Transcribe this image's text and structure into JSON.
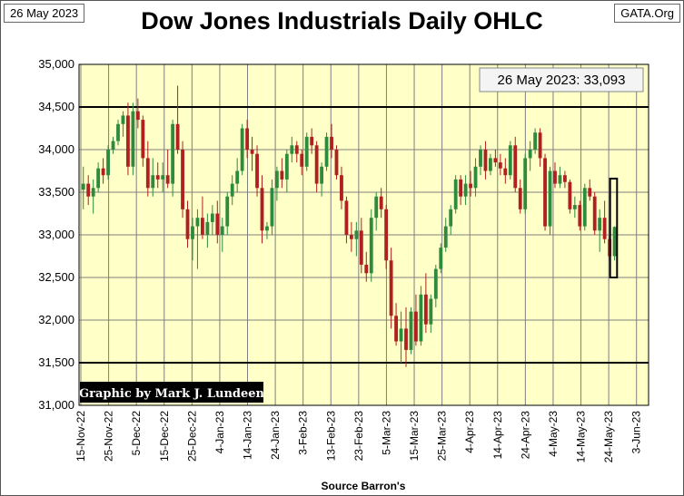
{
  "header": {
    "date_label": "26 May 2023",
    "site_label": "GATA.Org",
    "title": "Dow Jones Industrials Daily OHLC"
  },
  "chart_data": {
    "type": "ohlc",
    "title": "Dow Jones Industrials Daily OHLC",
    "xlabel": "Source Barron's",
    "ylabel": "",
    "ylim": [
      31000,
      35000
    ],
    "y_ticks": [
      31000,
      31500,
      32000,
      32500,
      33000,
      33500,
      34000,
      34500,
      35000
    ],
    "y_tick_labels": [
      "31,000",
      "31,500",
      "32,000",
      "32,500",
      "33,000",
      "33,500",
      "34,000",
      "34,500",
      "35,000"
    ],
    "x_tick_labels": [
      "15-Nov-22",
      "25-Nov-22",
      "5-Dec-22",
      "15-Dec-22",
      "25-Dec-22",
      "4-Jan-23",
      "14-Jan-23",
      "24-Jan-23",
      "3-Feb-23",
      "13-Feb-23",
      "23-Feb-23",
      "5-Mar-23",
      "15-Mar-23",
      "25-Mar-23",
      "4-Apr-23",
      "14-Apr-23",
      "24-Apr-23",
      "4-May-23",
      "14-May-23",
      "24-May-23",
      "3-Jun-23"
    ],
    "reference_lines": [
      34500,
      31500
    ],
    "annotation": "26 May 2023:  33,093",
    "credit": "Graphic by Mark J. Lundeen",
    "highlight_box": {
      "x_start": 190.5,
      "x_end": 193.0,
      "y_low": 32500,
      "y_high": 33660
    },
    "colors": {
      "plot_bg": "#ffffc8",
      "up": "#2e8b3e",
      "down": "#b02020",
      "grid": "#7f7f7f",
      "ref_line": "#000000"
    },
    "series": [
      {
        "name": "daily",
        "ohlc": [
          [
            33530,
            33800,
            33300,
            33600
          ],
          [
            33600,
            33700,
            33350,
            33450
          ],
          [
            33450,
            33650,
            33250,
            33550
          ],
          [
            33550,
            33850,
            33500,
            33780
          ],
          [
            33780,
            33900,
            33600,
            33700
          ],
          [
            33700,
            34050,
            33650,
            34000
          ],
          [
            34000,
            34150,
            33950,
            34100
          ],
          [
            34100,
            34350,
            34050,
            34300
          ],
          [
            34300,
            34450,
            34150,
            34400
          ],
          [
            34400,
            34550,
            33700,
            33800
          ],
          [
            33800,
            34550,
            33700,
            34450
          ],
          [
            34450,
            34600,
            34250,
            34350
          ],
          [
            34350,
            34400,
            33800,
            33900
          ],
          [
            33900,
            34100,
            33450,
            33550
          ],
          [
            33550,
            33900,
            33450,
            33700
          ],
          [
            33700,
            33850,
            33550,
            33650
          ],
          [
            33650,
            33850,
            33500,
            33700
          ],
          [
            33700,
            34000,
            33550,
            33600
          ],
          [
            33600,
            34350,
            33450,
            34300
          ],
          [
            34300,
            34750,
            33950,
            34000
          ],
          [
            34000,
            34100,
            33200,
            33300
          ],
          [
            33300,
            33400,
            32850,
            32950
          ],
          [
            32950,
            33200,
            32700,
            33100
          ],
          [
            33100,
            33300,
            32600,
            33200
          ],
          [
            33200,
            33450,
            32950,
            33000
          ],
          [
            33000,
            33250,
            32850,
            33150
          ],
          [
            33150,
            33350,
            33000,
            33250
          ],
          [
            33250,
            33400,
            32900,
            33000
          ],
          [
            33000,
            33200,
            32800,
            33100
          ],
          [
            33100,
            33500,
            33000,
            33450
          ],
          [
            33450,
            33700,
            33350,
            33600
          ],
          [
            33600,
            33900,
            33500,
            33750
          ],
          [
            33750,
            34300,
            33700,
            34250
          ],
          [
            34250,
            34350,
            33900,
            34000
          ],
          [
            34000,
            34150,
            33750,
            33950
          ],
          [
            33950,
            34050,
            33450,
            33550
          ],
          [
            33550,
            33700,
            32900,
            33050
          ],
          [
            33050,
            33150,
            32950,
            33100
          ],
          [
            33100,
            33650,
            33000,
            33550
          ],
          [
            33550,
            33800,
            33400,
            33750
          ],
          [
            33750,
            33900,
            33550,
            33650
          ],
          [
            33650,
            34000,
            33500,
            33950
          ],
          [
            33950,
            34150,
            33850,
            34050
          ],
          [
            34050,
            34100,
            33850,
            33950
          ],
          [
            33950,
            34000,
            33700,
            33800
          ],
          [
            33800,
            34200,
            33750,
            34150
          ],
          [
            34150,
            34250,
            33950,
            34050
          ],
          [
            34050,
            34100,
            33500,
            33600
          ],
          [
            33600,
            33850,
            33450,
            33800
          ],
          [
            33800,
            34200,
            33750,
            34150
          ],
          [
            34150,
            34300,
            33900,
            34000
          ],
          [
            34000,
            34050,
            33650,
            33700
          ],
          [
            33700,
            33800,
            33300,
            33400
          ],
          [
            33400,
            33450,
            32900,
            33000
          ],
          [
            33000,
            33150,
            32800,
            32950
          ],
          [
            32950,
            33150,
            32750,
            33050
          ],
          [
            33050,
            33200,
            32550,
            32650
          ],
          [
            32650,
            32800,
            32450,
            32550
          ],
          [
            32550,
            33300,
            32450,
            33200
          ],
          [
            33200,
            33500,
            33050,
            33450
          ],
          [
            33450,
            33550,
            33200,
            33300
          ],
          [
            33300,
            33350,
            32600,
            32700
          ],
          [
            32700,
            32850,
            31900,
            32050
          ],
          [
            32050,
            32200,
            31700,
            31750
          ],
          [
            31750,
            32100,
            31500,
            31900
          ],
          [
            31900,
            32150,
            31450,
            31650
          ],
          [
            31650,
            32150,
            31600,
            32100
          ],
          [
            32100,
            32300,
            31700,
            31750
          ],
          [
            31750,
            32400,
            31700,
            32300
          ],
          [
            32300,
            32550,
            31850,
            31950
          ],
          [
            31950,
            32300,
            31850,
            32250
          ],
          [
            32250,
            32650,
            32150,
            32600
          ],
          [
            32600,
            32900,
            32550,
            32850
          ],
          [
            32850,
            33200,
            32800,
            33100
          ],
          [
            33100,
            33350,
            33000,
            33300
          ],
          [
            33300,
            33700,
            33250,
            33650
          ],
          [
            33650,
            33700,
            33350,
            33450
          ],
          [
            33450,
            33700,
            33350,
            33600
          ],
          [
            33600,
            33750,
            33450,
            33550
          ],
          [
            33550,
            33900,
            33450,
            33800
          ],
          [
            33800,
            34050,
            33700,
            34000
          ],
          [
            34000,
            34100,
            33650,
            33750
          ],
          [
            33750,
            33950,
            33700,
            33900
          ],
          [
            33900,
            34000,
            33800,
            33850
          ],
          [
            33850,
            33950,
            33700,
            33780
          ],
          [
            33780,
            33900,
            33600,
            33700
          ],
          [
            33700,
            34100,
            33650,
            34050
          ],
          [
            34050,
            34150,
            33500,
            33550
          ],
          [
            33550,
            33650,
            33250,
            33300
          ],
          [
            33300,
            33950,
            33250,
            33900
          ],
          [
            33900,
            34100,
            33750,
            34000
          ],
          [
            34000,
            34250,
            33950,
            34200
          ],
          [
            34200,
            34250,
            33800,
            33900
          ],
          [
            33900,
            33950,
            33050,
            33100
          ],
          [
            33100,
            33800,
            33000,
            33750
          ],
          [
            33750,
            33850,
            33550,
            33600
          ],
          [
            33600,
            33800,
            33550,
            33700
          ],
          [
            33700,
            33750,
            33550,
            33620
          ],
          [
            33620,
            33650,
            33250,
            33300
          ],
          [
            33300,
            33450,
            33200,
            33350
          ],
          [
            33350,
            33400,
            33050,
            33100
          ],
          [
            33100,
            33600,
            33050,
            33550
          ],
          [
            33550,
            33650,
            33400,
            33450
          ],
          [
            33450,
            33500,
            33000,
            33050
          ],
          [
            33050,
            33300,
            32800,
            33200
          ],
          [
            33200,
            33400,
            32900,
            32950
          ],
          [
            32950,
            33000,
            32700,
            32750
          ],
          [
            32750,
            33100,
            32700,
            33093
          ]
        ]
      }
    ]
  }
}
